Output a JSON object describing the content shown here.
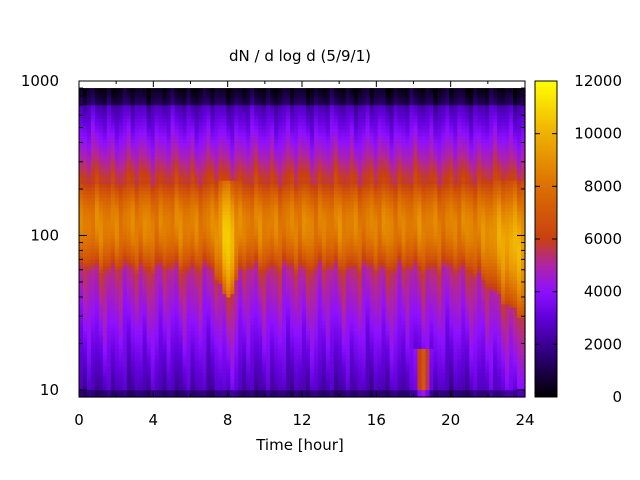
{
  "chart_data": {
    "type": "heatmap",
    "title": "dN / d log d (5/9/1)",
    "xlabel": "Time [hour]",
    "ylabel": "",
    "x_range": [
      0,
      24
    ],
    "y_range": [
      9,
      1000
    ],
    "y_scale": "log",
    "x_ticks": [
      0,
      4,
      8,
      12,
      16,
      20,
      24
    ],
    "y_ticks": [
      10,
      100,
      1000
    ],
    "colorbar": {
      "range": [
        0,
        12000
      ],
      "ticks": [
        0,
        2000,
        4000,
        6000,
        8000,
        10000,
        12000
      ],
      "colormap": "gnuplot"
    },
    "data_y_range": [
      9,
      900
    ],
    "dominant_band": {
      "lower_d": 60,
      "upper_d": 230,
      "typical_value": 8500,
      "peak_value": 10500
    },
    "features": [
      {
        "time": 8,
        "peak_value": 10500,
        "note": "intense band, lower edge dips to ~40"
      },
      {
        "time": 18.5,
        "d_range": [
          9,
          18
        ],
        "value": 7000,
        "note": "local maximum at small sizes"
      },
      {
        "time": 23,
        "peak_value": 10000,
        "note": "band broadens downward to ~30"
      }
    ]
  },
  "labels": {
    "title": "dN / d log d (5/9/1)",
    "xlabel": "Time [hour]",
    "x_ticks": [
      "0",
      "4",
      "8",
      "12",
      "16",
      "20",
      "24"
    ],
    "y_ticks": [
      "10",
      "100",
      "1000"
    ],
    "cb_ticks": [
      "0",
      "2000",
      "4000",
      "6000",
      "8000",
      "10000",
      "12000"
    ]
  }
}
